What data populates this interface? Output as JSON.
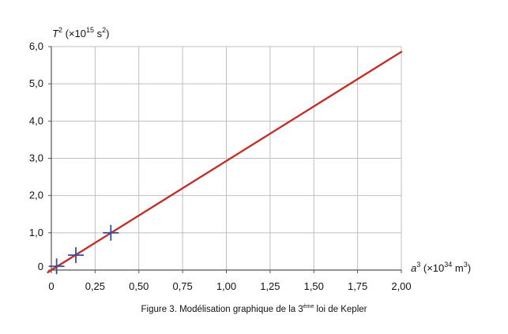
{
  "chart_data": {
    "type": "scatter",
    "x_axis": {
      "range": [
        0,
        2.0
      ],
      "ticks": [
        0,
        0.25,
        0.5,
        0.75,
        1.0,
        1.25,
        1.5,
        1.75,
        2.0
      ],
      "tick_labels": [
        "0",
        "0,25",
        "0,50",
        "0,75",
        "1,00",
        "1,25",
        "1,50",
        "1,75",
        "2,00"
      ],
      "label": {
        "var": "a",
        "sup1": "3",
        "pre": " (×10",
        "sup2": "34",
        "mid": " m",
        "sup3": "3",
        "post": ")"
      }
    },
    "y_axis": {
      "range": [
        0,
        6.0
      ],
      "ticks": [
        0,
        1,
        2,
        3,
        4,
        5,
        6
      ],
      "tick_labels": [
        "0",
        "1,0",
        "2,0",
        "3,0",
        "4,0",
        "5,0",
        "6,0"
      ],
      "label": {
        "var": "T",
        "sup1": "2",
        "pre": " (×10",
        "sup2": "15",
        "mid": " s",
        "sup3": "2",
        "post": ")"
      }
    },
    "grid": true,
    "points": [
      {
        "x": 0.03,
        "y": 0.1
      },
      {
        "x": 0.14,
        "y": 0.4
      },
      {
        "x": 0.34,
        "y": 1.0
      }
    ],
    "fit_line": {
      "x": [
        -0.02,
        2.0
      ],
      "y": [
        -0.06,
        5.86
      ]
    },
    "colors": {
      "points": "#3a4a9a",
      "line": "#c0302a",
      "grid": "#bfbfbf",
      "axis": "#555555"
    }
  },
  "caption": {
    "prefix": "Figure 3. Modélisation graphique de la 3",
    "sup": "ème",
    "suffix": " loi de Kepler"
  }
}
